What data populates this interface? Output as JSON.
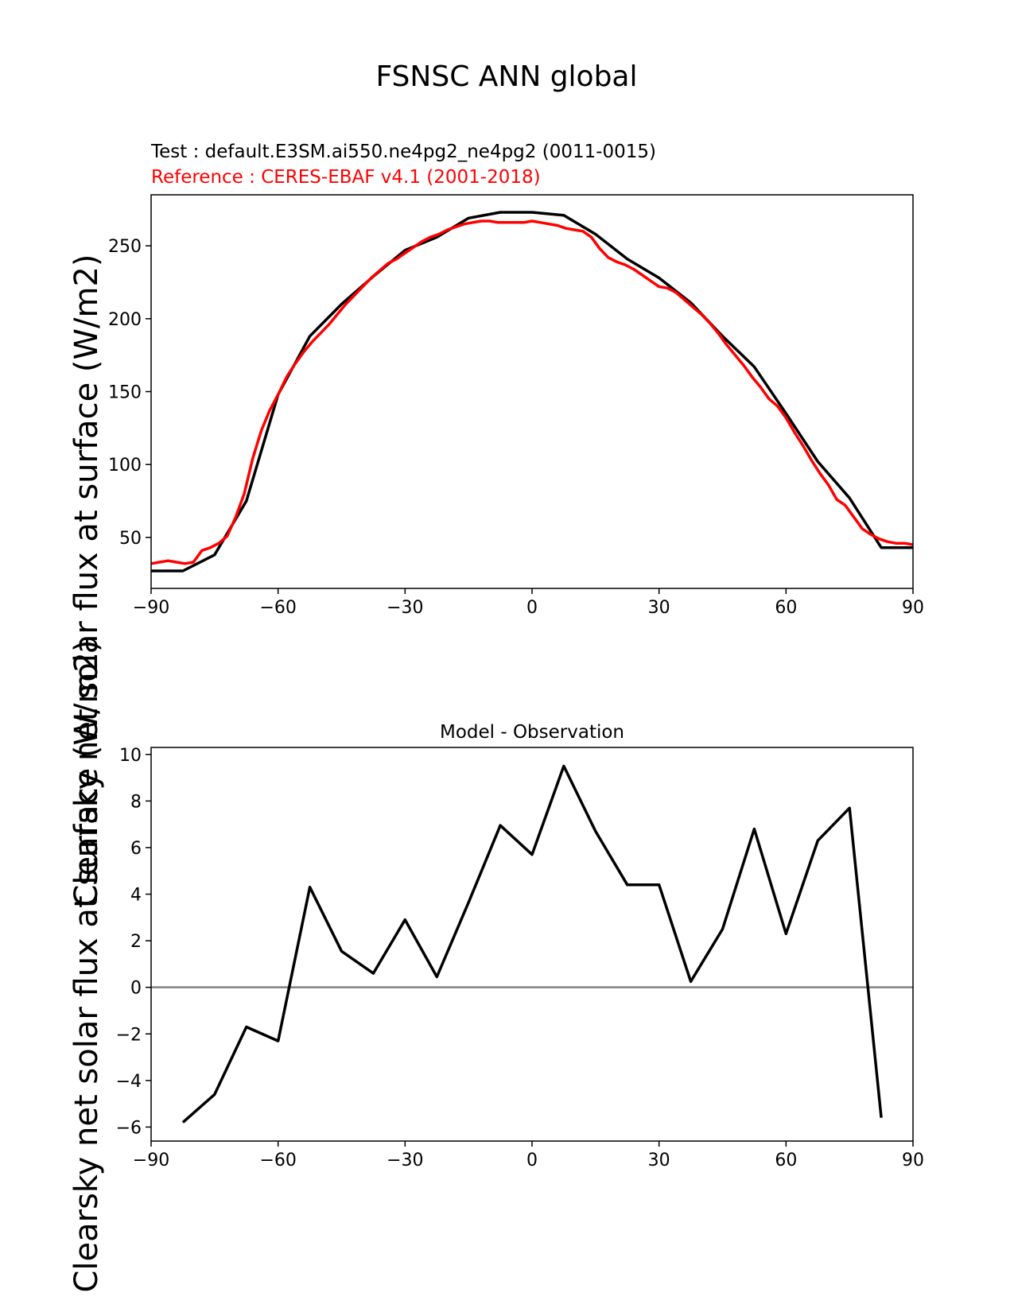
{
  "figure": {
    "title": "FSNSC ANN global",
    "test_label": "Test : default.E3SM.ai550.ne4pg2_ne4pg2 (0011-0015)",
    "reference_label": "Reference : CERES-EBAF v4.1 (2001-2018)",
    "ylabel": "Clearsky net solar flux at surface (W/m2)",
    "colors": {
      "test": "#000000",
      "reference": "#ff0000",
      "zero_line": "#808080"
    }
  },
  "chart_data": [
    {
      "type": "line",
      "title": "",
      "xlabel": "",
      "ylabel": "Clearsky net solar flux at surface (W/m2)",
      "xlim": [
        -90,
        90
      ],
      "ylim": [
        15,
        285
      ],
      "xticks": [
        -90,
        -60,
        -30,
        0,
        30,
        60,
        90
      ],
      "xtick_labels": [
        "−90",
        "−60",
        "−30",
        "0",
        "30",
        "60",
        "90"
      ],
      "yticks": [
        50,
        100,
        150,
        200,
        250
      ],
      "ytick_labels": [
        "50",
        "100",
        "150",
        "200",
        "250"
      ],
      "series": [
        {
          "name": "Test : default.E3SM.ai550.ne4pg2_ne4pg2 (0011-0015)",
          "color": "#000000",
          "x": [
            -90,
            -82.5,
            -75,
            -67.5,
            -60,
            -52.5,
            -45,
            -37.5,
            -30,
            -22.5,
            -15,
            -7.5,
            0,
            7.5,
            15,
            22.5,
            30,
            37.5,
            45,
            52.5,
            60,
            67.5,
            75,
            82.5,
            90
          ],
          "y": [
            27,
            27,
            38,
            75,
            148,
            188,
            210,
            229,
            247,
            256,
            269,
            273,
            273,
            271,
            258,
            241,
            228,
            211,
            188,
            167,
            135,
            102,
            77,
            43,
            43
          ]
        },
        {
          "name": "Reference : CERES-EBAF v4.1 (2001-2018)",
          "color": "#ff0000",
          "x": [
            -90,
            -88,
            -86,
            -84,
            -82,
            -80,
            -78,
            -76,
            -74,
            -72,
            -70,
            -68,
            -66,
            -64,
            -62,
            -60,
            -58,
            -56,
            -54,
            -52,
            -50,
            -48,
            -46,
            -44,
            -42,
            -40,
            -38,
            -36,
            -34,
            -32,
            -30,
            -28,
            -26,
            -24,
            -22,
            -20,
            -18,
            -16,
            -14,
            -12,
            -10,
            -8,
            -6,
            -4,
            -2,
            0,
            2,
            4,
            6,
            8,
            10,
            12,
            14,
            16,
            18,
            20,
            22,
            24,
            26,
            28,
            30,
            32,
            34,
            36,
            38,
            40,
            42,
            44,
            46,
            48,
            50,
            52,
            54,
            56,
            58,
            60,
            62,
            64,
            66,
            68,
            70,
            72,
            74,
            76,
            78,
            80,
            82,
            84,
            86,
            88,
            90
          ],
          "y": [
            32,
            33,
            34,
            33,
            32,
            33,
            41,
            43,
            46,
            51,
            64,
            80,
            104,
            123,
            137,
            148,
            160,
            169,
            177,
            184,
            190,
            196,
            203,
            210,
            216,
            222,
            228,
            233,
            238,
            241,
            245,
            249,
            253,
            256,
            258,
            261,
            263,
            265,
            266,
            267,
            267,
            266,
            266,
            266,
            266,
            267,
            266,
            265,
            264,
            262,
            261,
            260,
            256,
            248,
            242,
            239,
            237,
            234,
            230,
            226,
            222,
            221,
            218,
            213,
            208,
            203,
            197,
            190,
            182,
            175,
            168,
            160,
            153,
            145,
            140,
            132,
            122,
            113,
            103,
            94,
            86,
            76,
            72,
            64,
            56,
            52,
            49,
            47,
            46,
            46,
            45
          ]
        }
      ]
    },
    {
      "type": "line",
      "title": "Model - Observation",
      "xlabel": "",
      "ylabel": "Clearsky net solar flux at surface (W/m2)",
      "xlim": [
        -90,
        90
      ],
      "ylim": [
        -6.6,
        10.3
      ],
      "xticks": [
        -90,
        -60,
        -30,
        0,
        30,
        60,
        90
      ],
      "xtick_labels": [
        "−90",
        "−60",
        "−30",
        "0",
        "30",
        "60",
        "90"
      ],
      "yticks": [
        -6,
        -4,
        -2,
        0,
        2,
        4,
        6,
        8,
        10
      ],
      "ytick_labels": [
        "−6",
        "−4",
        "−2",
        "0",
        "2",
        "4",
        "6",
        "8",
        "10"
      ],
      "zero_line": true,
      "series": [
        {
          "name": "",
          "color": "#000000",
          "x": [
            -82.5,
            -75,
            -67.5,
            -60,
            -52.5,
            -45,
            -37.5,
            -30,
            -22.5,
            -15,
            -7.5,
            0,
            7.5,
            15,
            22.5,
            30,
            37.5,
            45,
            52.5,
            60,
            67.5,
            75,
            82.5
          ],
          "y": [
            -5.8,
            -4.6,
            -1.7,
            -2.3,
            4.3,
            1.55,
            0.6,
            2.9,
            0.45,
            3.65,
            6.95,
            5.7,
            9.5,
            6.7,
            4.4,
            4.4,
            0.25,
            2.5,
            6.8,
            2.3,
            6.3,
            7.7,
            -5.6
          ]
        }
      ]
    }
  ]
}
